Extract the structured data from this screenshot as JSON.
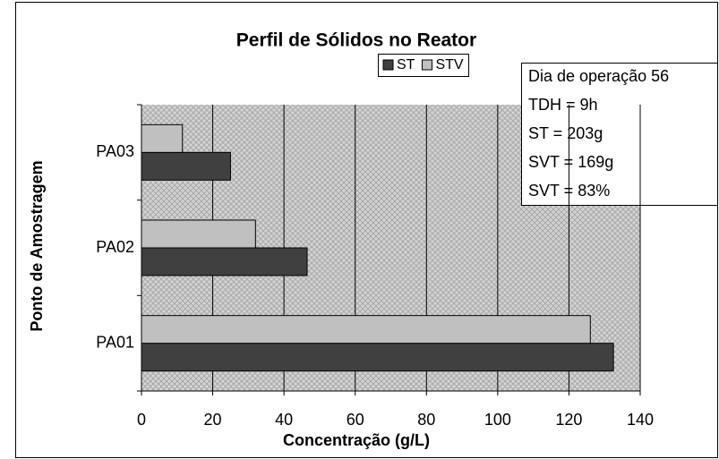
{
  "chart_data": {
    "type": "barh",
    "title": "Perfil de Sólidos no Reator",
    "x_label": "Concentração (g/L)",
    "y_label": "Ponto de Amostragem",
    "categories": [
      "PA01",
      "PA02",
      "PA03"
    ],
    "series": [
      {
        "name": "ST",
        "color": "#404040",
        "values": [
          132.5,
          46.5,
          25
        ]
      },
      {
        "name": "STV",
        "color": "#c0c0c0",
        "values": [
          126,
          32,
          11.5
        ]
      }
    ],
    "xlim": [
      0,
      140
    ],
    "xticks": [
      0,
      20,
      40,
      60,
      80,
      100,
      120,
      140
    ],
    "grid": true,
    "annotations": [
      "Dia de operação 56",
      "TDH = 9h",
      "ST = 203g",
      "SVT = 169g",
      "SVT = 83%"
    ]
  }
}
